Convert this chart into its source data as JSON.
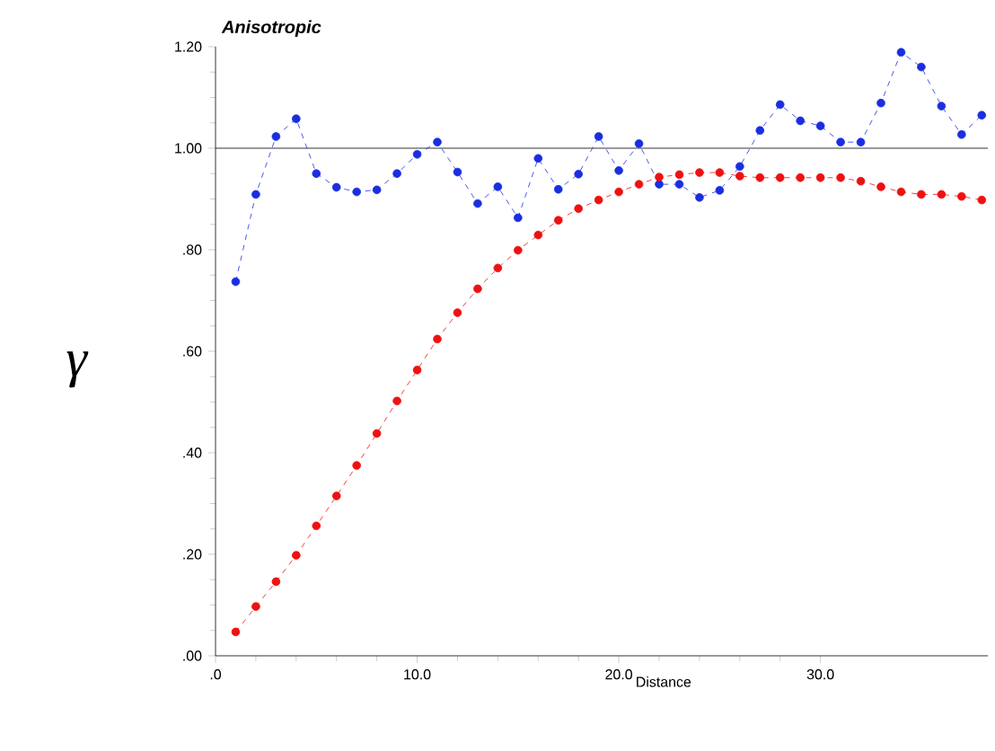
{
  "chart_data": {
    "type": "line",
    "title": "Anisotropic",
    "xlabel": "Distance",
    "ylabel": "γ",
    "x": [
      1,
      2,
      3,
      4,
      5,
      6,
      7,
      8,
      9,
      10,
      11,
      12,
      13,
      14,
      15,
      16,
      17,
      18,
      19,
      20,
      21,
      22,
      23,
      24,
      25,
      26,
      27,
      28,
      29,
      30,
      31,
      32,
      33,
      34,
      35,
      36,
      37,
      38
    ],
    "series": [
      {
        "color": "#1a2ee0",
        "values": [
          0.737,
          0.909,
          1.023,
          1.058,
          0.95,
          0.923,
          0.914,
          0.918,
          0.95,
          0.988,
          1.012,
          0.953,
          0.891,
          0.924,
          0.863,
          0.98,
          0.919,
          0.949,
          1.023,
          0.956,
          1.009,
          0.929,
          0.929,
          0.903,
          0.917,
          0.964,
          1.035,
          1.086,
          1.054,
          1.044,
          1.012,
          1.012,
          1.089,
          1.189,
          1.16,
          1.083,
          1.027,
          1.065
        ]
      },
      {
        "color": "#ee1111",
        "values": [
          0.047,
          0.097,
          0.146,
          0.198,
          0.256,
          0.315,
          0.375,
          0.438,
          0.502,
          0.563,
          0.624,
          0.676,
          0.723,
          0.764,
          0.799,
          0.829,
          0.858,
          0.881,
          0.898,
          0.914,
          0.929,
          0.943,
          0.948,
          0.952,
          0.952,
          0.945,
          0.942,
          0.942,
          0.942,
          0.942,
          0.942,
          0.935,
          0.924,
          0.914,
          0.909,
          0.909,
          0.905,
          0.898
        ]
      }
    ],
    "xlim": [
      0,
      38.3
    ],
    "ylim": [
      0,
      1.2
    ],
    "xticks": [
      {
        "value": 0,
        "label": ".0"
      },
      {
        "value": 10,
        "label": "10.0"
      },
      {
        "value": 20,
        "label": "20.0"
      },
      {
        "value": 30,
        "label": "30.0"
      }
    ],
    "yticks": [
      {
        "value": 0,
        "label": ".00"
      },
      {
        "value": 0.2,
        "label": ".20"
      },
      {
        "value": 0.4,
        "label": ".40"
      },
      {
        "value": 0.6,
        "label": ".60"
      },
      {
        "value": 0.8,
        "label": ".80"
      },
      {
        "value": 1.0,
        "label": "1.00"
      },
      {
        "value": 1.2,
        "label": "1.20"
      }
    ],
    "ref_lines": [
      {
        "axis": "y",
        "value": 1.0,
        "color": "#000000"
      }
    ],
    "marker": "circle",
    "line_style": "dashed"
  }
}
